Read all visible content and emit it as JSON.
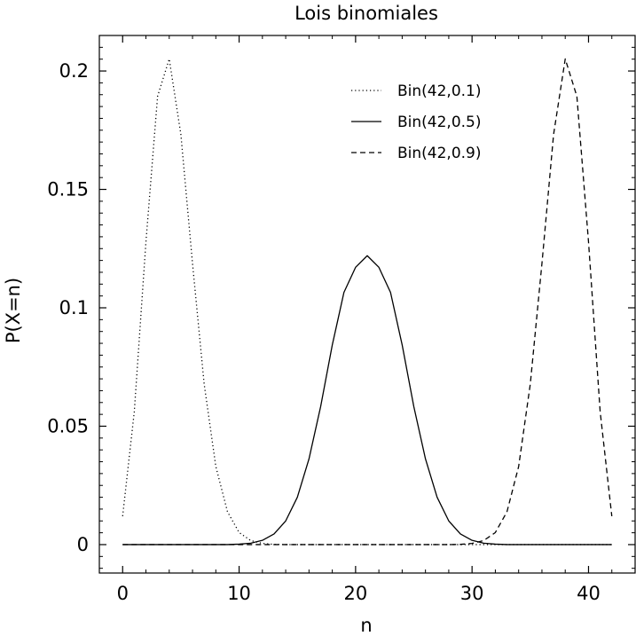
{
  "chart_data": {
    "type": "line",
    "title": "Lois binomiales",
    "xlabel": "n",
    "ylabel": "P(X=n)",
    "xlim": [
      -2,
      44
    ],
    "ylim": [
      -0.012,
      0.215
    ],
    "xticks": [
      0,
      10,
      20,
      30,
      40
    ],
    "xtick_labels": [
      "0",
      "10",
      "20",
      "30",
      "40"
    ],
    "yticks": [
      0,
      0.05,
      0.1,
      0.15,
      0.2
    ],
    "ytick_labels": [
      "0",
      "0.05",
      "0.1",
      "0.15",
      "0.2"
    ],
    "grid": false,
    "legend_position": "top-right",
    "x": [
      0,
      1,
      2,
      3,
      4,
      5,
      6,
      7,
      8,
      9,
      10,
      11,
      12,
      13,
      14,
      15,
      16,
      17,
      18,
      19,
      20,
      21,
      22,
      23,
      24,
      25,
      26,
      27,
      28,
      29,
      30,
      31,
      32,
      33,
      34,
      35,
      36,
      37,
      38,
      39,
      40,
      41,
      42
    ],
    "series": [
      {
        "name": "Bin(42,0.1)",
        "style": "dotted",
        "color": "#000000",
        "values": [
          0.012,
          0.0561,
          0.1278,
          0.1893,
          0.2051,
          0.1732,
          0.1187,
          0.0678,
          0.033,
          0.0139,
          0.0051,
          0.0017,
          0.0005,
          0.0001,
          0,
          0,
          0,
          0,
          0,
          0,
          0,
          0,
          0,
          0,
          0,
          0,
          0,
          0,
          0,
          0,
          0,
          0,
          0,
          0,
          0,
          0,
          0,
          0,
          0,
          0,
          0,
          0,
          0
        ]
      },
      {
        "name": "Bin(42,0.5)",
        "style": "solid",
        "color": "#000000",
        "values": [
          0,
          0,
          0,
          0,
          0,
          0,
          0,
          0,
          0,
          0,
          0.0002,
          0.0006,
          0.0018,
          0.0045,
          0.01,
          0.02,
          0.0362,
          0.0583,
          0.0843,
          0.1065,
          0.1171,
          0.122,
          0.1171,
          0.1065,
          0.0843,
          0.0583,
          0.0362,
          0.02,
          0.01,
          0.0045,
          0.0018,
          0.0006,
          0.0002,
          0,
          0,
          0,
          0,
          0,
          0,
          0,
          0,
          0,
          0
        ]
      },
      {
        "name": "Bin(42,0.9)",
        "style": "dashed",
        "color": "#000000",
        "values": [
          0,
          0,
          0,
          0,
          0,
          0,
          0,
          0,
          0,
          0,
          0,
          0,
          0,
          0,
          0,
          0,
          0,
          0,
          0,
          0,
          0,
          0,
          0,
          0,
          0,
          0,
          0,
          0,
          0,
          0.0001,
          0.0005,
          0.0017,
          0.0051,
          0.0139,
          0.033,
          0.0678,
          0.1187,
          0.1732,
          0.2051,
          0.1893,
          0.1278,
          0.0561,
          0.012
        ]
      }
    ]
  }
}
